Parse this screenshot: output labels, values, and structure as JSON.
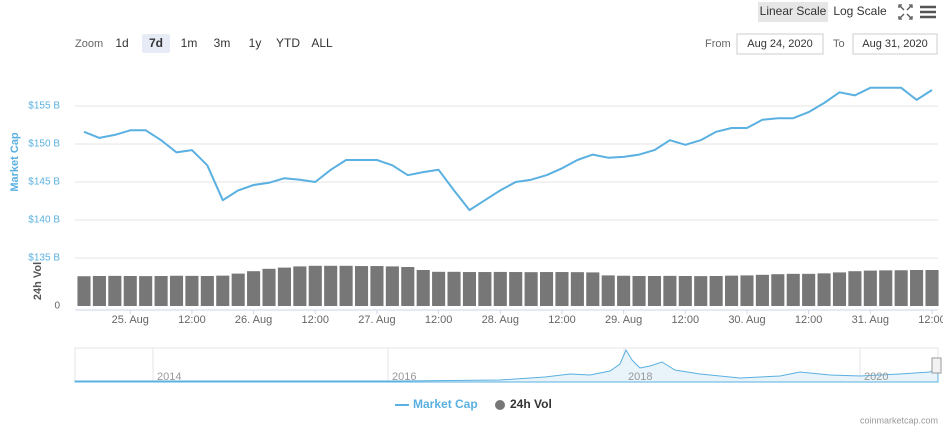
{
  "chart_data": {
    "type": "line",
    "x": [
      "24. Aug 15:00",
      "24. Aug 18:00",
      "24. Aug 21:00",
      "25. Aug 00:00",
      "25. Aug 03:00",
      "25. Aug 06:00",
      "25. Aug 09:00",
      "25. Aug 12:00",
      "25. Aug 15:00",
      "25. Aug 18:00",
      "25. Aug 21:00",
      "26. Aug 00:00",
      "26. Aug 03:00",
      "26. Aug 06:00",
      "26. Aug 09:00",
      "26. Aug 12:00",
      "26. Aug 15:00",
      "26. Aug 18:00",
      "26. Aug 21:00",
      "27. Aug 00:00",
      "27. Aug 03:00",
      "27. Aug 06:00",
      "27. Aug 09:00",
      "27. Aug 12:00",
      "27. Aug 15:00",
      "27. Aug 18:00",
      "27. Aug 21:00",
      "28. Aug 00:00",
      "28. Aug 03:00",
      "28. Aug 06:00",
      "28. Aug 09:00",
      "28. Aug 12:00",
      "28. Aug 15:00",
      "28. Aug 18:00",
      "28. Aug 21:00",
      "29. Aug 00:00",
      "29. Aug 03:00",
      "29. Aug 06:00",
      "29. Aug 09:00",
      "29. Aug 12:00",
      "29. Aug 15:00",
      "29. Aug 18:00",
      "29. Aug 21:00",
      "30. Aug 00:00",
      "30. Aug 03:00",
      "30. Aug 06:00",
      "30. Aug 09:00",
      "30. Aug 12:00",
      "30. Aug 15:00",
      "30. Aug 18:00",
      "30. Aug 21:00",
      "31. Aug 00:00",
      "31. Aug 03:00",
      "31. Aug 06:00",
      "31. Aug 09:00",
      "31. Aug 12:00"
    ],
    "series": [
      {
        "name": "Market Cap",
        "color": "#5ab0e0",
        "type": "line",
        "values": [
          151.6,
          150.8,
          151.2,
          151.8,
          151.8,
          150.5,
          148.9,
          149.2,
          147.2,
          142.6,
          143.9,
          144.6,
          144.9,
          145.5,
          145.3,
          145.0,
          146.6,
          147.9,
          147.9,
          147.9,
          147.2,
          145.9,
          146.3,
          146.6,
          143.9,
          141.3,
          142.6,
          143.9,
          145.0,
          145.3,
          145.9,
          146.8,
          147.9,
          148.6,
          148.2,
          148.3,
          148.6,
          149.2,
          150.5,
          149.9,
          150.5,
          151.6,
          152.1,
          152.1,
          153.2,
          153.4,
          153.4,
          154.2,
          155.4,
          156.8,
          156.4,
          157.4,
          157.4,
          157.4,
          155.8,
          157.1
        ]
      },
      {
        "name": "24h Vol",
        "color": "#777777",
        "type": "bar",
        "axis": "y2",
        "values": [
          24.8,
          25.0,
          25.1,
          25.0,
          24.9,
          25.0,
          25.2,
          25.1,
          25.0,
          25.3,
          27.0,
          29.0,
          31.0,
          32.0,
          33.0,
          33.5,
          33.5,
          33.5,
          33.3,
          33.3,
          33.0,
          32.5,
          30.0,
          28.5,
          28.5,
          28.3,
          28.3,
          28.4,
          28.3,
          28.2,
          28.3,
          28.3,
          28.2,
          28.0,
          25.5,
          25.2,
          25.0,
          25.0,
          25.1,
          25.0,
          24.9,
          25.0,
          25.3,
          25.5,
          26.0,
          26.5,
          26.8,
          26.8,
          27.2,
          28.0,
          29.0,
          29.5,
          29.7,
          29.8,
          30.0,
          30.0
        ]
      }
    ],
    "y_label": "Market Cap",
    "y2_label": "24h Vol",
    "ylim": [
      135,
      160
    ],
    "yticks": [
      {
        "value": 135,
        "label": "$135 B"
      },
      {
        "value": 140,
        "label": "$140 B"
      },
      {
        "value": 145,
        "label": "$145 B"
      },
      {
        "value": 150,
        "label": "$150 B"
      },
      {
        "value": 155,
        "label": "$155 B"
      }
    ],
    "y2lim": [
      0,
      40
    ],
    "y2ticks": [
      0
    ],
    "xticks": [
      {
        "value": "25. Aug 00:00",
        "label": "25. Aug"
      },
      {
        "value": "25. Aug 12:00",
        "label": "12:00"
      },
      {
        "value": "26. Aug 00:00",
        "label": "26. Aug"
      },
      {
        "value": "26. Aug 12:00",
        "label": "12:00"
      },
      {
        "value": "27. Aug 00:00",
        "label": "27. Aug"
      },
      {
        "value": "27. Aug 12:00",
        "label": "12:00"
      },
      {
        "value": "28. Aug 00:00",
        "label": "28. Aug"
      },
      {
        "value": "28. Aug 12:00",
        "label": "12:00"
      },
      {
        "value": "29. Aug 00:00",
        "label": "29. Aug"
      },
      {
        "value": "29. Aug 12:00",
        "label": "12:00"
      },
      {
        "value": "30. Aug 00:00",
        "label": "30. Aug"
      },
      {
        "value": "30. Aug 12:00",
        "label": "12:00"
      },
      {
        "value": "31. Aug 00:00",
        "label": "31. Aug"
      },
      {
        "value": "31. Aug 12:00",
        "label": "12:00"
      }
    ],
    "grid": true,
    "legend": "bottom"
  },
  "ui": {
    "scale_buttons": [
      "Linear Scale",
      "Log Scale"
    ],
    "zoom_label": "Zoom",
    "zoom_buttons": [
      "1d",
      "7d",
      "1m",
      "3m",
      "1y",
      "YTD",
      "ALL"
    ],
    "from_label": "From",
    "from_date": "Aug 24, 2020",
    "to_label": "To",
    "to_date": "Aug 31, 2020",
    "credit": "coinmarketcap.com"
  },
  "navigator": {
    "labels": [
      "2014",
      "2016",
      "2018",
      "2020"
    ]
  }
}
